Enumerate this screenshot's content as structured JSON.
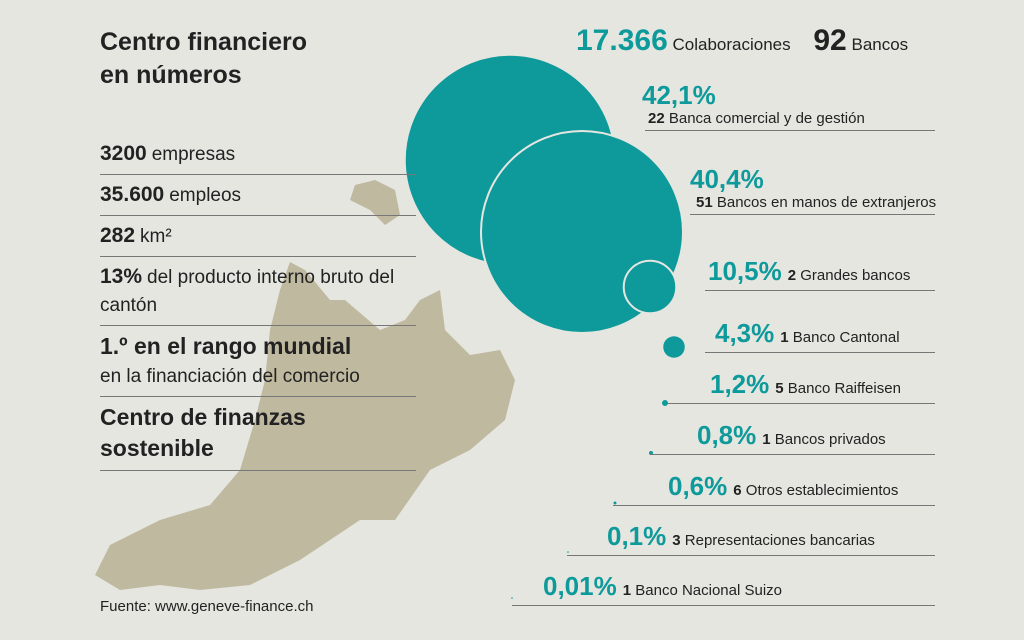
{
  "header": {
    "title_line1": "Centro financiero",
    "title_line2": "en números"
  },
  "top": {
    "collaborations": "17.366",
    "collaborations_label": "Colaboraciones",
    "banks": "92",
    "banks_label": "Bancos"
  },
  "stats": [
    {
      "bold": "3200",
      "text": "empresas"
    },
    {
      "bold": "35.600",
      "text": "empleos"
    },
    {
      "bold": "282",
      "text": "km²"
    },
    {
      "bold": "13%",
      "text": "del producto interno bruto del cantón"
    },
    {
      "bold": "1.º en el rango mundial",
      "text": "en la financiación del comercio"
    },
    {
      "bold": "Centro de finanzas sostenible"
    }
  ],
  "banks": [
    {
      "value": 42.1,
      "label": "42,1%",
      "count": 22,
      "name": "Banca comercial y de gestión"
    },
    {
      "value": 40.4,
      "label": "40,4%",
      "count": 51,
      "name": "Bancos en manos de extranjeros"
    },
    {
      "value": 10.5,
      "label": "10,5%",
      "count": 2,
      "name": "Grandes bancos"
    },
    {
      "value": 4.3,
      "label": "4,3%",
      "count": 1,
      "name": "Banco Cantonal"
    },
    {
      "value": 1.2,
      "label": "1,2%",
      "count": 5,
      "name": "Banco Raiffeisen"
    },
    {
      "value": 0.8,
      "label": "0,8%",
      "count": 1,
      "name": "Bancos privados"
    },
    {
      "value": 0.6,
      "label": "0,6%",
      "count": 6,
      "name": "Otros establecimientos"
    },
    {
      "value": 0.1,
      "label": "0,1%",
      "count": 3,
      "name": "Representaciones bancarias"
    },
    {
      "value": 0.01,
      "label": "0,01%",
      "count": 1,
      "name": "Banco Nacional Suizo"
    }
  ],
  "source": "Fuente: www.geneve-finance.ch"
}
